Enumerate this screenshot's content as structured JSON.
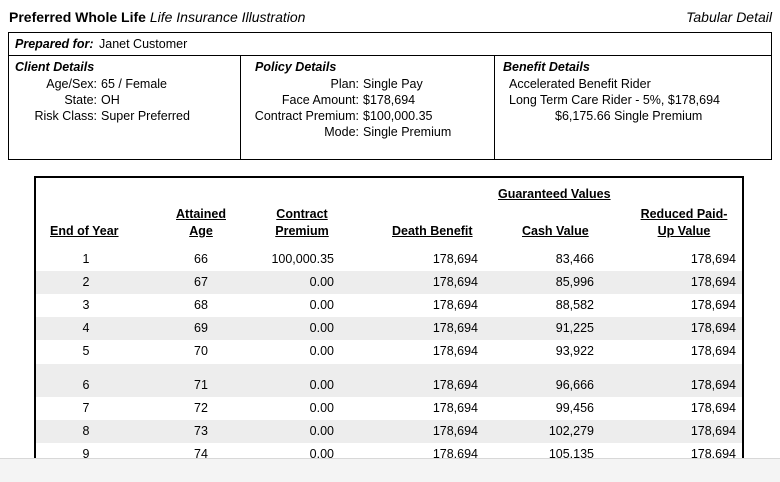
{
  "header": {
    "product_bold": "Preferred Whole Life",
    "product_italic": "Life Insurance Illustration",
    "section": "Tabular Detail"
  },
  "prepared": {
    "label": "Prepared for:",
    "name": "Janet Customer"
  },
  "client": {
    "title": "Client Details",
    "rows": [
      {
        "label": "Age/Sex:",
        "value": "65 / Female"
      },
      {
        "label": "State:",
        "value": "OH"
      },
      {
        "label": "Risk Class:",
        "value": "Super Preferred"
      }
    ]
  },
  "policy": {
    "title": "Policy Details",
    "rows": [
      {
        "label": "Plan:",
        "value": "Single Pay"
      },
      {
        "label": "Face Amount:",
        "value": "$178,694"
      },
      {
        "label": "Contract Premium:",
        "value": "$100,000.35"
      },
      {
        "label": "Mode:",
        "value": "Single Premium"
      }
    ]
  },
  "benefit": {
    "title": "Benefit Details",
    "lines": [
      "Accelerated Benefit Rider",
      "Long Term Care Rider - 5%, $178,694",
      "$6,175.66 Single Premium"
    ]
  },
  "table": {
    "group_header": "Guaranteed Values",
    "headers": {
      "year": "End of Year",
      "age_1": "Attained",
      "age_2": "Age",
      "premium_1": "Contract",
      "premium_2": "Premium",
      "death_benefit": "Death Benefit",
      "cash_value": "Cash Value",
      "rpu_1": "Reduced Paid-",
      "rpu_2": "Up Value"
    },
    "rows": [
      {
        "year": "1",
        "age": "66",
        "premium": "100,000.35",
        "death_benefit": "178,694",
        "cash_value": "83,466",
        "rpu": "178,694"
      },
      {
        "year": "2",
        "age": "67",
        "premium": "0.00",
        "death_benefit": "178,694",
        "cash_value": "85,996",
        "rpu": "178,694"
      },
      {
        "year": "3",
        "age": "68",
        "premium": "0.00",
        "death_benefit": "178,694",
        "cash_value": "88,582",
        "rpu": "178,694"
      },
      {
        "year": "4",
        "age": "69",
        "premium": "0.00",
        "death_benefit": "178,694",
        "cash_value": "91,225",
        "rpu": "178,694"
      },
      {
        "year": "5",
        "age": "70",
        "premium": "0.00",
        "death_benefit": "178,694",
        "cash_value": "93,922",
        "rpu": "178,694"
      },
      {
        "year": "6",
        "age": "71",
        "premium": "0.00",
        "death_benefit": "178,694",
        "cash_value": "96,666",
        "rpu": "178,694"
      },
      {
        "year": "7",
        "age": "72",
        "premium": "0.00",
        "death_benefit": "178,694",
        "cash_value": "99,456",
        "rpu": "178,694"
      },
      {
        "year": "8",
        "age": "73",
        "premium": "0.00",
        "death_benefit": "178,694",
        "cash_value": "102,279",
        "rpu": "178,694"
      },
      {
        "year": "9",
        "age": "74",
        "premium": "0.00",
        "death_benefit": "178,694",
        "cash_value": "105,135",
        "rpu": "178,694"
      }
    ]
  }
}
